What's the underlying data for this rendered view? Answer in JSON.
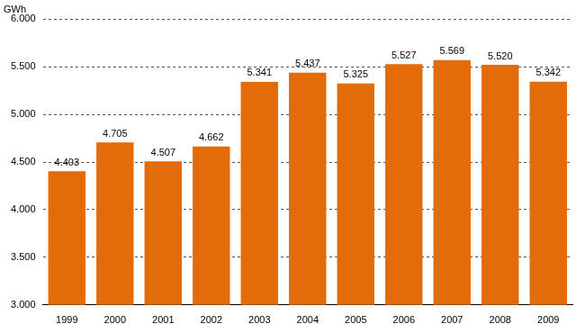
{
  "chart_data": {
    "type": "bar",
    "ylabel": "GWh",
    "categories": [
      "1999",
      "2000",
      "2001",
      "2002",
      "2003",
      "2004",
      "2005",
      "2006",
      "2007",
      "2008",
      "2009"
    ],
    "values": [
      4403,
      4705,
      4507,
      4662,
      5341,
      5437,
      5325,
      5527,
      5569,
      5520,
      5342
    ],
    "value_labels": [
      "4.403",
      "4.705",
      "4.507",
      "4.662",
      "5.341",
      "5.437",
      "5.325",
      "5.527",
      "5.569",
      "5.520",
      "5.342"
    ],
    "color": "#e36c0a",
    "ylim": [
      3000,
      6000
    ],
    "yticks": [
      {
        "value": 3000,
        "label": "3.000"
      },
      {
        "value": 3500,
        "label": "3.500"
      },
      {
        "value": 4000,
        "label": "4.000"
      },
      {
        "value": 4500,
        "label": "4.500"
      },
      {
        "value": 5000,
        "label": "5.000"
      },
      {
        "value": 5500,
        "label": "5.500"
      },
      {
        "value": 6000,
        "label": "6.000"
      }
    ],
    "grid": true,
    "data_labels": true
  }
}
